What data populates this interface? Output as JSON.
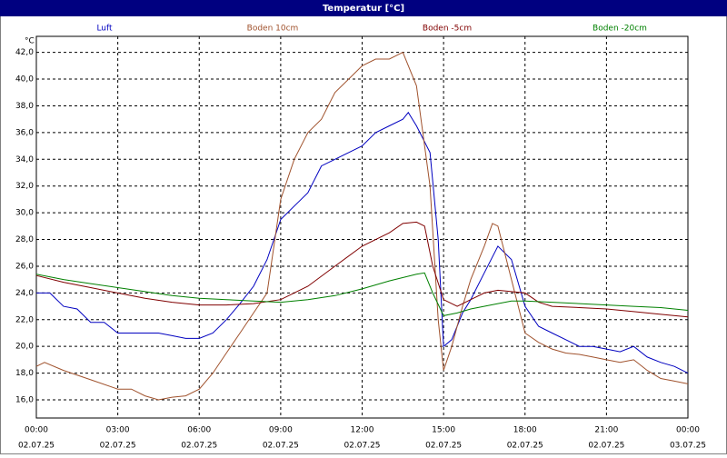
{
  "chart_data": {
    "type": "line",
    "title": "Temperatur [°C]",
    "y_unit": "°C",
    "xlim": [
      0,
      24
    ],
    "ylim": [
      14.64,
      43.2
    ],
    "grid": true,
    "xticks": [
      {
        "value": 0,
        "label": "00:00",
        "date": "02.07.25"
      },
      {
        "value": 3,
        "label": "03:00",
        "date": "02.07.25"
      },
      {
        "value": 6,
        "label": "06:00",
        "date": "02.07.25"
      },
      {
        "value": 9,
        "label": "09:00",
        "date": "02.07.25"
      },
      {
        "value": 12,
        "label": "12:00",
        "date": "02.07.25"
      },
      {
        "value": 15,
        "label": "15:00",
        "date": "02.07.25"
      },
      {
        "value": 18,
        "label": "18:00",
        "date": "02.07.25"
      },
      {
        "value": 21,
        "label": "21:00",
        "date": "02.07.25"
      },
      {
        "value": 24,
        "label": "00:00",
        "date": "03.07.25"
      }
    ],
    "yticks": [
      {
        "value": 16,
        "label": "16,0"
      },
      {
        "value": 18,
        "label": "18,0"
      },
      {
        "value": 20,
        "label": "20,0"
      },
      {
        "value": 22,
        "label": "22,0"
      },
      {
        "value": 24,
        "label": "24,0"
      },
      {
        "value": 26,
        "label": "26,0"
      },
      {
        "value": 28,
        "label": "28,0"
      },
      {
        "value": 30,
        "label": "30,0"
      },
      {
        "value": 32,
        "label": "32,0"
      },
      {
        "value": 34,
        "label": "34,0"
      },
      {
        "value": 36,
        "label": "36,0"
      },
      {
        "value": 38,
        "label": "38,0"
      },
      {
        "value": 40,
        "label": "40,0"
      },
      {
        "value": 42,
        "label": "42,0"
      }
    ],
    "series": [
      {
        "name": "Luft",
        "color": "#0000c0",
        "x": [
          0,
          0.5,
          1,
          1.5,
          2,
          2.5,
          3,
          3.5,
          4,
          4.5,
          5,
          5.5,
          6,
          6.5,
          7,
          7.5,
          8,
          8.5,
          9,
          9.5,
          10,
          10.5,
          11,
          11.5,
          12,
          12.5,
          13,
          13.5,
          13.7,
          14,
          14.5,
          14.8,
          15,
          15.3,
          15.7,
          16,
          16.5,
          17,
          17.5,
          18,
          18.5,
          19,
          19.5,
          20,
          20.5,
          21,
          21.5,
          22,
          22.5,
          23,
          23.5,
          24
        ],
        "values": [
          24.0,
          24.0,
          23.0,
          22.8,
          21.8,
          21.8,
          21.0,
          21.0,
          21.0,
          21.0,
          20.8,
          20.6,
          20.6,
          21.0,
          22.0,
          23.2,
          24.5,
          26.5,
          29.5,
          30.5,
          31.5,
          33.5,
          34.0,
          34.5,
          35.0,
          36.0,
          36.5,
          37.0,
          37.5,
          36.5,
          34.5,
          28.0,
          20.0,
          20.5,
          22.5,
          23.5,
          25.5,
          27.5,
          26.5,
          23.0,
          21.5,
          21.0,
          20.5,
          20.0,
          20.0,
          19.8,
          19.6,
          20.0,
          19.2,
          18.8,
          18.5,
          18.0
        ]
      },
      {
        "name": "Boden 10cm",
        "color": "#a0522d",
        "x": [
          0,
          0.3,
          1,
          2,
          3,
          3.5,
          4,
          4.5,
          5,
          5.5,
          6,
          6.5,
          7,
          7.5,
          8,
          8.5,
          9,
          9.5,
          10,
          10.5,
          11,
          11.5,
          12,
          12.5,
          13,
          13.5,
          14,
          14.5,
          14.8,
          15,
          15.3,
          15.7,
          16,
          16.5,
          16.8,
          17,
          17.5,
          18,
          18.5,
          19,
          19.5,
          20,
          20.5,
          21,
          21.5,
          22,
          22.5,
          23,
          23.5,
          24
        ],
        "values": [
          18.5,
          18.8,
          18.2,
          17.5,
          16.8,
          16.8,
          16.3,
          16.0,
          16.2,
          16.3,
          16.8,
          18.0,
          19.5,
          21.0,
          22.5,
          24.0,
          31.0,
          34.0,
          36.0,
          37.0,
          39.0,
          40.0,
          41.0,
          41.5,
          41.5,
          42.0,
          39.5,
          32.0,
          22.0,
          18.2,
          20.0,
          23.0,
          25.0,
          27.5,
          29.2,
          29.0,
          25.0,
          21.0,
          20.3,
          19.8,
          19.5,
          19.4,
          19.2,
          19.0,
          18.8,
          19.0,
          18.2,
          17.6,
          17.4,
          17.2
        ]
      },
      {
        "name": "Boden -5cm",
        "color": "#800000",
        "x": [
          0,
          1,
          2,
          3,
          4,
          5,
          6,
          7,
          8,
          9,
          10,
          11,
          12,
          13,
          13.5,
          14,
          14.3,
          14.6,
          15,
          15.5,
          16,
          16.5,
          17,
          18,
          18.5,
          19,
          20,
          21,
          22,
          23,
          24
        ],
        "values": [
          25.3,
          24.8,
          24.4,
          24.0,
          23.6,
          23.3,
          23.1,
          23.1,
          23.2,
          23.5,
          24.5,
          26.0,
          27.5,
          28.5,
          29.2,
          29.3,
          29.0,
          26.0,
          23.5,
          23.0,
          23.5,
          24.0,
          24.2,
          24.0,
          23.3,
          23.0,
          22.9,
          22.8,
          22.6,
          22.4,
          22.2
        ]
      },
      {
        "name": "Boden -20cm",
        "color": "#008000",
        "x": [
          0,
          1,
          2,
          3,
          4,
          5,
          6,
          7,
          8,
          9,
          10,
          11,
          12,
          13,
          14,
          14.3,
          14.6,
          15,
          15.5,
          16,
          17,
          17.5,
          18,
          19,
          20,
          21,
          22,
          23,
          24
        ],
        "values": [
          25.4,
          25.0,
          24.7,
          24.4,
          24.1,
          23.8,
          23.6,
          23.5,
          23.4,
          23.3,
          23.5,
          23.8,
          24.3,
          24.9,
          25.4,
          25.5,
          24.0,
          22.3,
          22.5,
          22.8,
          23.2,
          23.4,
          23.4,
          23.3,
          23.2,
          23.1,
          23.0,
          22.9,
          22.7
        ]
      }
    ]
  }
}
